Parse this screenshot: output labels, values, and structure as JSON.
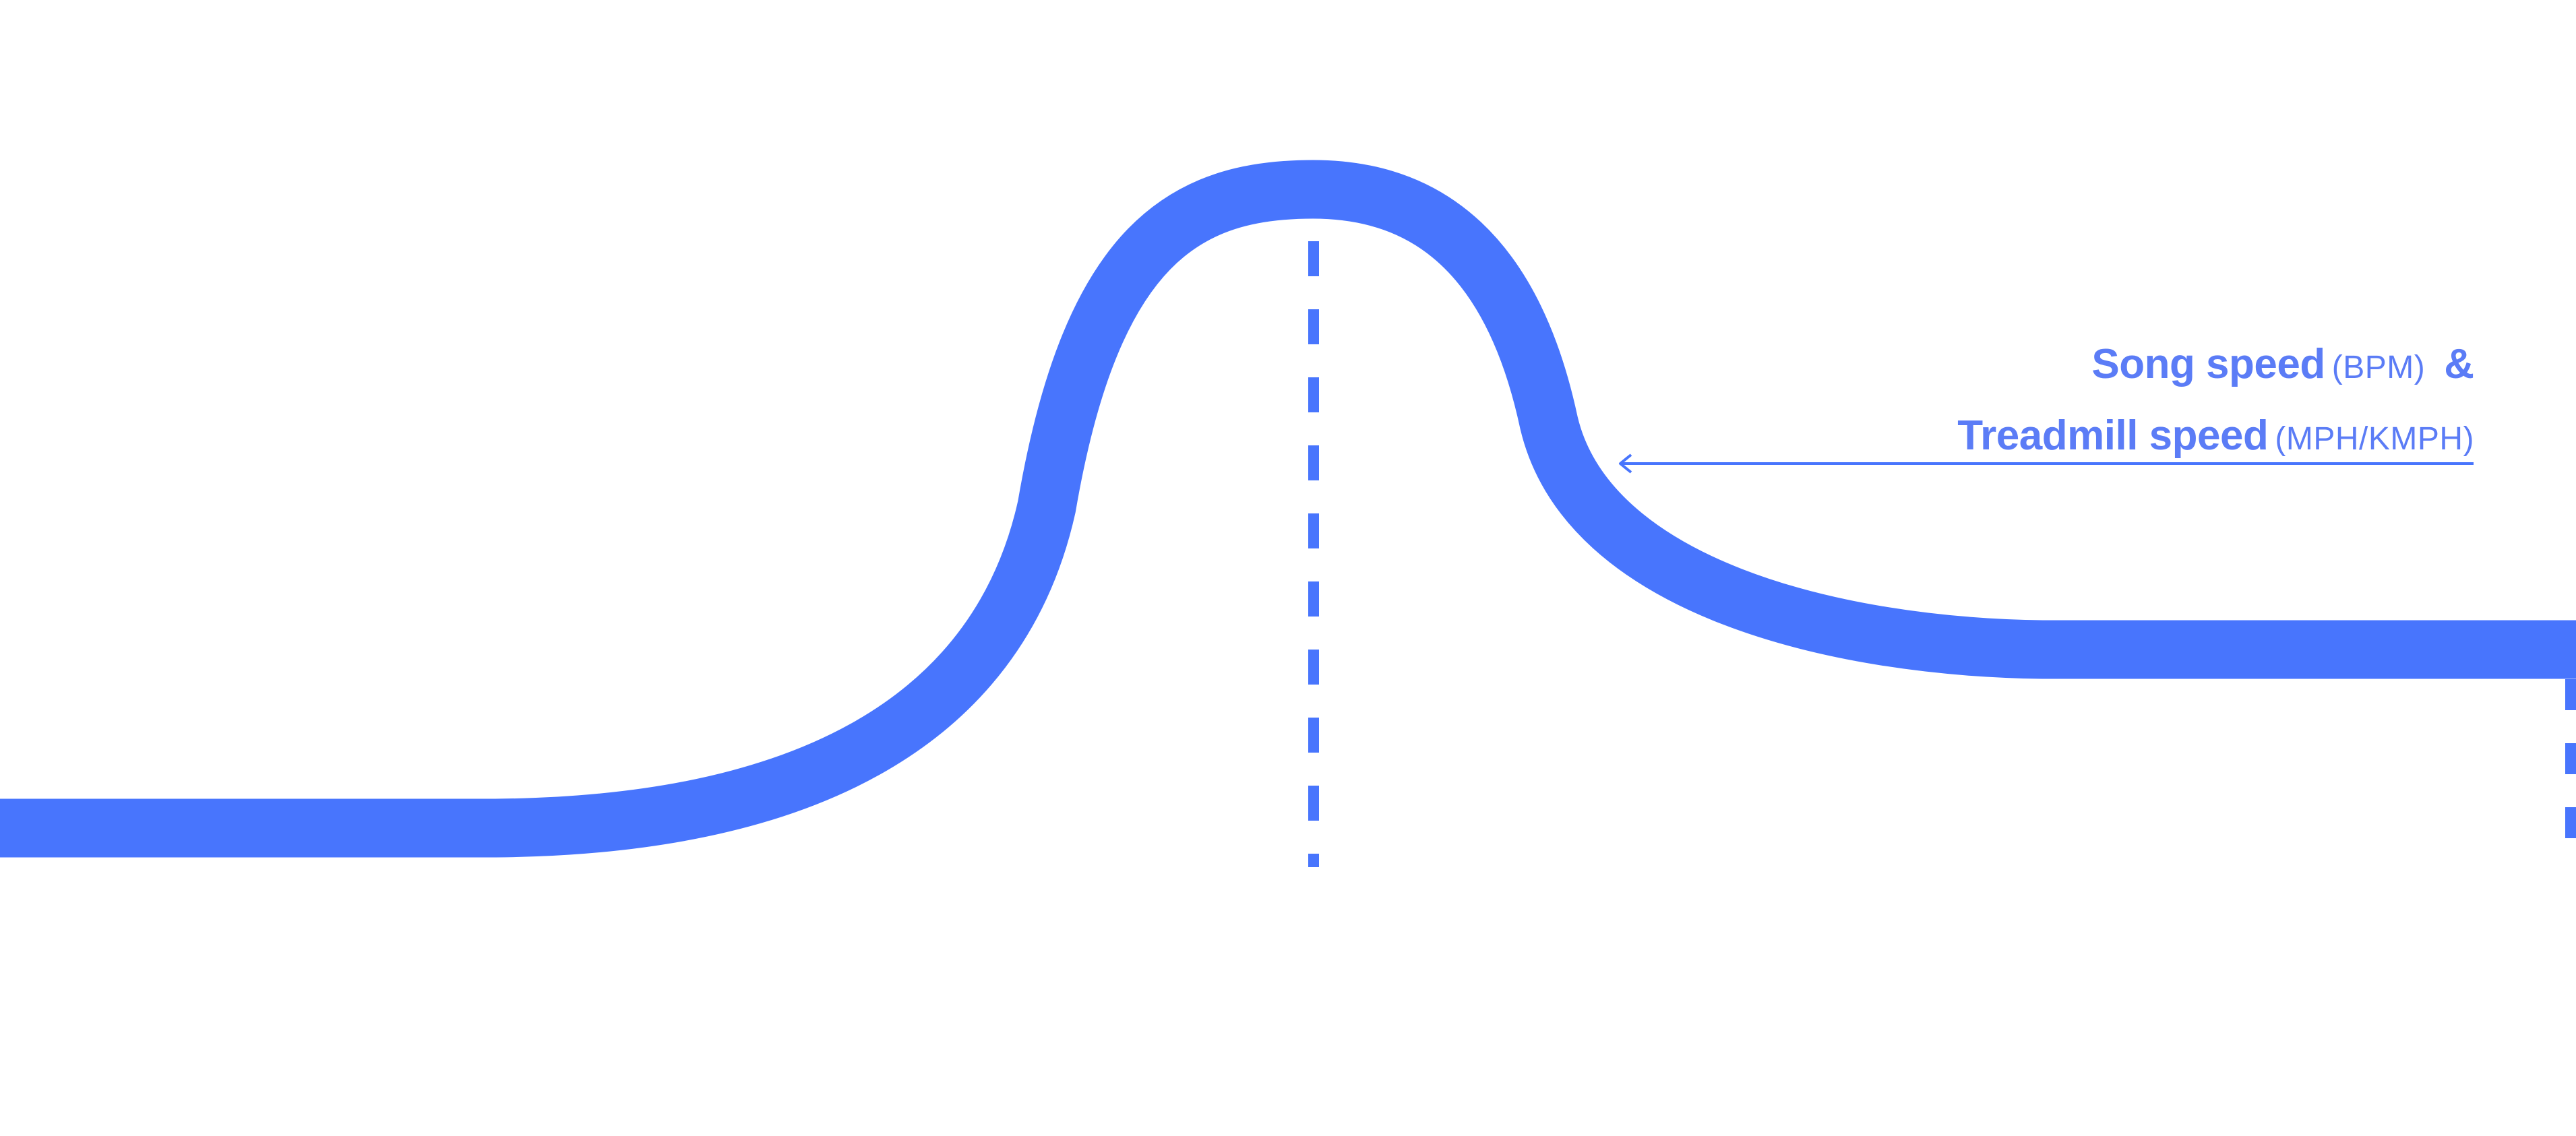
{
  "colors": {
    "curve": "#4875fd",
    "annotation_text": "#5b7cf6",
    "arrow": "#4875fd",
    "background": "#ffffff"
  },
  "annotation": {
    "line1_strong": "Song speed",
    "line1_unit": "(BPM)",
    "ampersand": "&",
    "line2_strong": "Treadmill speed",
    "line2_unit": "(MPH/KMPH)"
  }
}
